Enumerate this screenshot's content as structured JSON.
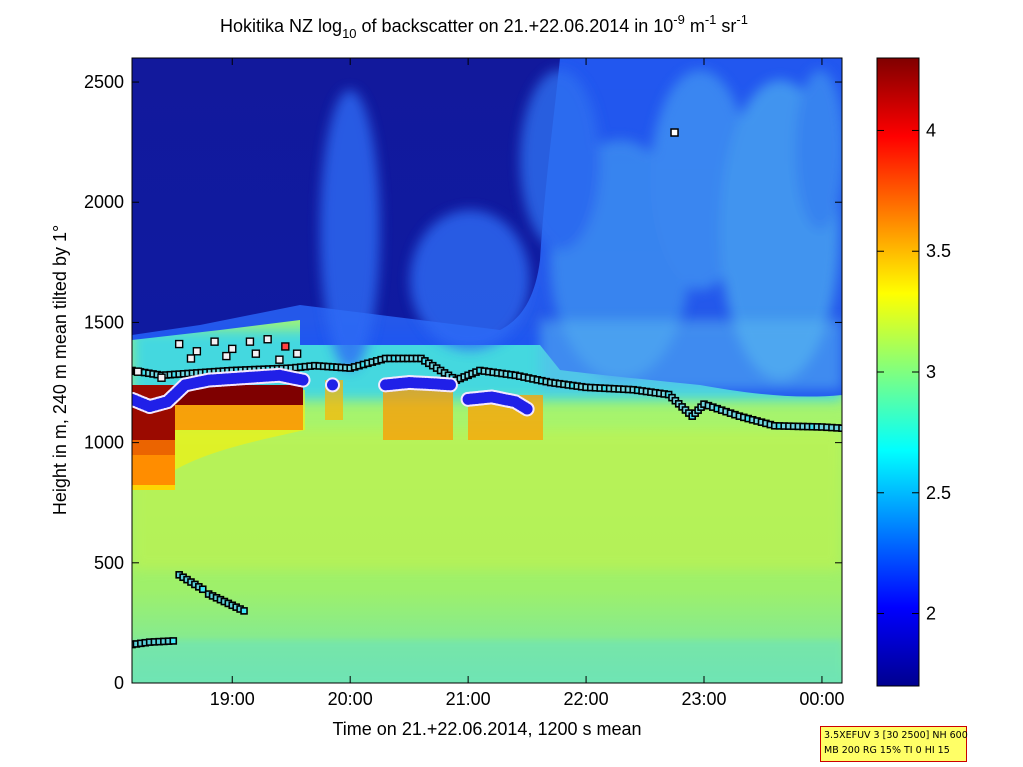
{
  "chart_data": {
    "type": "heatmap",
    "title": {
      "pre": "Hokitika NZ log",
      "sub": "10",
      "mid": " of backscatter on 21.+22.06.2014 in 10",
      "exp1": "-9",
      "m": " m",
      "exp2": "-1",
      "sr": " sr",
      "exp3": "-1"
    },
    "xlabel": "Time on 21.+22.06.2014, 1200 s mean",
    "ylabel": "Height in m, 240 m mean tilted by 1°",
    "x_ticks": [
      "19:00",
      "20:00",
      "21:00",
      "22:00",
      "23:00",
      "00:00"
    ],
    "x_tick_hours": [
      19,
      20,
      21,
      22,
      23,
      24
    ],
    "xlim_hours": [
      18.15,
      24.17
    ],
    "y_ticks": [
      "0",
      "500",
      "1000",
      "1500",
      "2000",
      "2500"
    ],
    "y_tick_values": [
      0,
      500,
      1000,
      1500,
      2000,
      2500
    ],
    "ylim": [
      0,
      2600
    ],
    "colorbar": {
      "ticks": [
        "2",
        "2.5",
        "3",
        "3.5",
        "4"
      ],
      "tick_values": [
        2,
        2.5,
        3,
        3.5,
        4
      ],
      "range": [
        1.7,
        4.3
      ],
      "colormap": "jet"
    },
    "layer_top_black_squares": {
      "x_hours": [
        18.15,
        18.4,
        19.0,
        19.5,
        19.7,
        20.0,
        20.3,
        20.6,
        20.9,
        21.1,
        21.4,
        21.7,
        22.0,
        22.4,
        22.7,
        22.9,
        23.0,
        23.3,
        23.6,
        24.0,
        24.17
      ],
      "heights": [
        1300,
        1280,
        1300,
        1310,
        1320,
        1310,
        1350,
        1350,
        1260,
        1300,
        1280,
        1250,
        1230,
        1220,
        1200,
        1110,
        1160,
        1110,
        1070,
        1065,
        1060
      ]
    },
    "cloud_base_blue_dots": [
      {
        "x_hours": [
          18.15,
          18.3,
          18.45,
          18.6,
          18.8,
          19.1,
          19.4,
          19.6
        ],
        "heights": [
          1180,
          1150,
          1170,
          1240,
          1260,
          1270,
          1280,
          1260
        ]
      },
      {
        "x_hours": [
          19.85
        ],
        "heights": [
          1240
        ]
      },
      {
        "x_hours": [
          20.3,
          20.5,
          20.7,
          20.85
        ],
        "heights": [
          1240,
          1250,
          1245,
          1240
        ]
      },
      {
        "x_hours": [
          21.0,
          21.2,
          21.4,
          21.5
        ],
        "heights": [
          1180,
          1190,
          1170,
          1140
        ]
      }
    ],
    "low_layer_squares": [
      {
        "x_hours": [
          18.15,
          18.3,
          18.5
        ],
        "heights": [
          160,
          170,
          175
        ]
      },
      {
        "x_hours": [
          18.55,
          18.75
        ],
        "heights": [
          450,
          390
        ]
      },
      {
        "x_hours": [
          18.8,
          19.1
        ],
        "heights": [
          370,
          300
        ]
      }
    ],
    "isolated_point": {
      "x_hours": 22.75,
      "height": 2290
    }
  },
  "info_box": {
    "line1": "3.5XEFUV 3 [30 2500] NH 600",
    "line2": "MB 200 RG 15% TI 0 HI 15"
  }
}
